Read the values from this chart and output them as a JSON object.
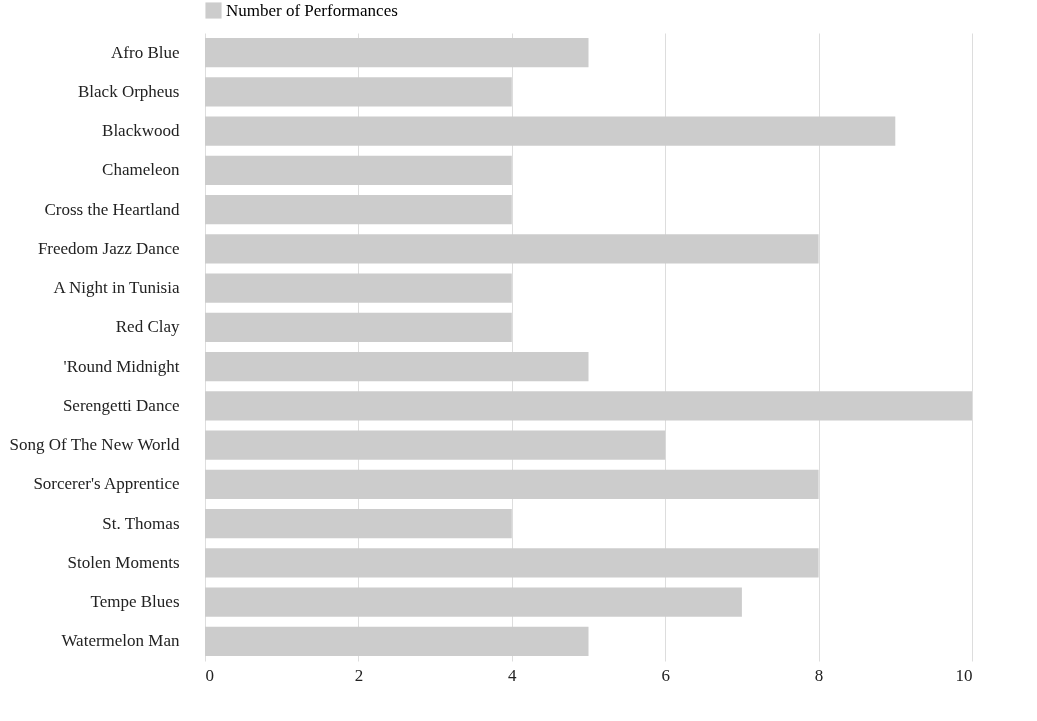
{
  "chart_data": {
    "type": "bar",
    "orientation": "horizontal",
    "categories": [
      "Afro Blue",
      "Black Orpheus",
      "Blackwood",
      "Chameleon",
      "Cross the Heartland",
      "Freedom Jazz Dance",
      "A Night in Tunisia",
      "Red Clay",
      "'Round Midnight",
      "Serengetti Dance",
      "Song Of The New World",
      "Sorcerer's Apprentice",
      "St. Thomas",
      "Stolen Moments",
      "Tempe Blues",
      "Watermelon Man"
    ],
    "series": [
      {
        "name": "Number of Performances",
        "color": "#cccccc",
        "values": [
          5,
          4,
          9,
          4,
          4,
          8,
          4,
          4,
          5,
          10,
          6,
          8,
          4,
          8,
          7,
          5
        ]
      }
    ],
    "xlim": [
      0,
      10
    ],
    "xticks": [
      0,
      2,
      4,
      6,
      8,
      10
    ],
    "grid": "x",
    "legend": "top"
  }
}
